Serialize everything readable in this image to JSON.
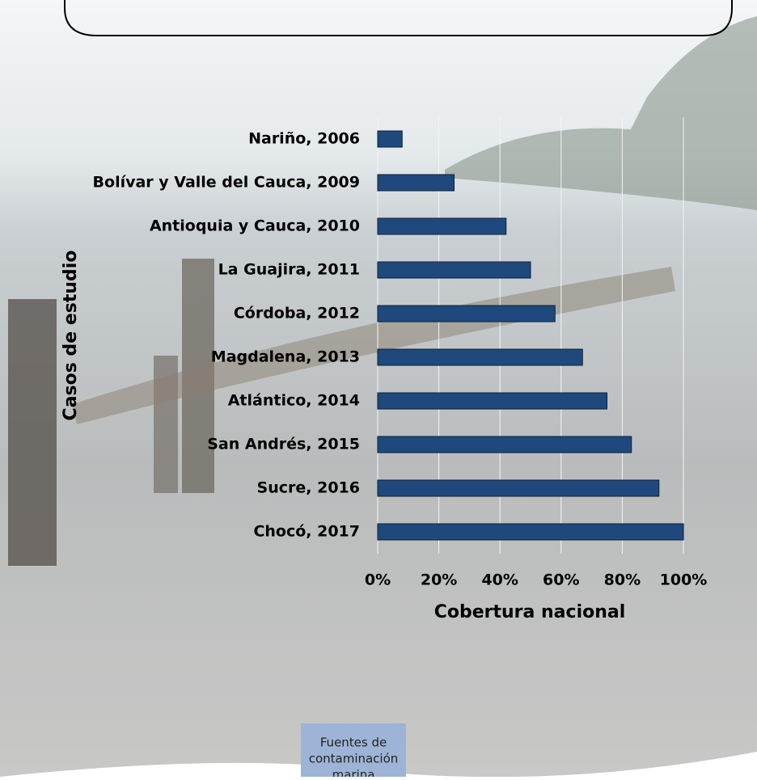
{
  "chart_data": {
    "type": "bar",
    "orientation": "horizontal",
    "x_label": "Cobertura nacional",
    "y_label": "Casos de estudio",
    "categories": [
      "Nariño, 2006",
      "Bolívar y Valle del Cauca, 2009",
      "Antioquia y Cauca, 2010",
      "La Guajira, 2011",
      "Córdoba, 2012",
      "Magdalena, 2013",
      "Atlántico, 2014",
      "San Andrés, 2015",
      "Sucre, 2016",
      "Chocó, 2017"
    ],
    "values": [
      8,
      25,
      42,
      50,
      58,
      67,
      75,
      83,
      92,
      100
    ],
    "color": "#1f497d",
    "xlim": [
      0,
      100
    ],
    "xticks": [
      {
        "value": 0,
        "label": "0%"
      },
      {
        "value": 20,
        "label": "20%"
      },
      {
        "value": 40,
        "label": "40%"
      },
      {
        "value": 60,
        "label": "60%"
      },
      {
        "value": 80,
        "label": "80%"
      },
      {
        "value": 100,
        "label": "100%"
      }
    ],
    "grid": true,
    "annotation": [
      "Fuentes de",
      "contaminación",
      "marina"
    ]
  }
}
